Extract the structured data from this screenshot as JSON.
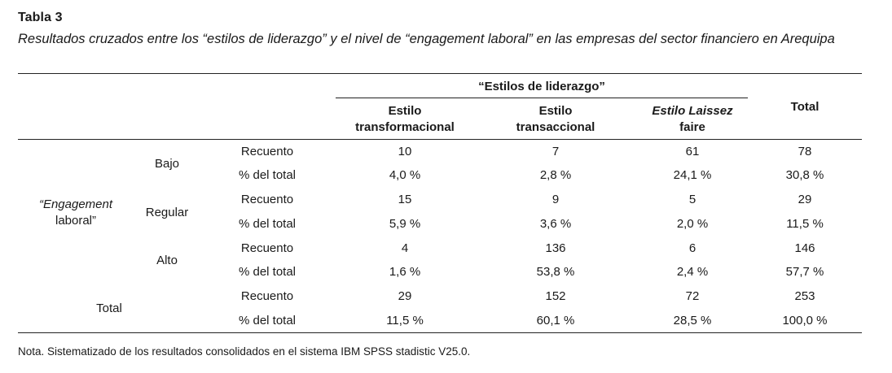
{
  "label": "Tabla 3",
  "caption": "Resultados cruzados entre los “estilos de liderazgo” y el nivel de “engagement laboral” en las empresas del sector financiero en Arequipa",
  "header": {
    "group": "“Estilos de liderazgo”",
    "columns": [
      {
        "line1": "Estilo",
        "line2": "transformacional"
      },
      {
        "line1": "Estilo",
        "line2": "transaccional"
      },
      {
        "line1": "Estilo Laissez",
        "line2": "faire"
      }
    ],
    "total": "Total"
  },
  "row_variable": {
    "line1": "“Engagement",
    "line2": "laboral”"
  },
  "groups": [
    {
      "label": "Bajo",
      "rows": [
        {
          "measure": "Recuento",
          "values": [
            "10",
            "7",
            "61",
            "78"
          ]
        },
        {
          "measure": "% del total",
          "values": [
            "4,0 %",
            "2,8 %",
            "24,1 %",
            "30,8 %"
          ]
        }
      ]
    },
    {
      "label": "Regular",
      "rows": [
        {
          "measure": "Recuento",
          "values": [
            "15",
            "9",
            "5",
            "29"
          ]
        },
        {
          "measure": "% del total",
          "values": [
            "5,9 %",
            "3,6 %",
            "2,0 %",
            "11,5 %"
          ]
        }
      ]
    },
    {
      "label": "Alto",
      "rows": [
        {
          "measure": "Recuento",
          "values": [
            "4",
            "136",
            "6",
            "146"
          ]
        },
        {
          "measure": "% del total",
          "values": [
            "1,6 %",
            "53,8 %",
            "2,4 %",
            "57,7 %"
          ]
        }
      ]
    }
  ],
  "total_group": {
    "label": "Total",
    "rows": [
      {
        "measure": "Recuento",
        "values": [
          "29",
          "152",
          "72",
          "253"
        ]
      },
      {
        "measure": "% del total",
        "values": [
          "11,5 %",
          "60,1 %",
          "28,5 %",
          "100,0 %"
        ]
      }
    ]
  },
  "note": "Nota. Sistematizado de los resultados consolidados en el sistema IBM SPSS stadistic V25.0."
}
